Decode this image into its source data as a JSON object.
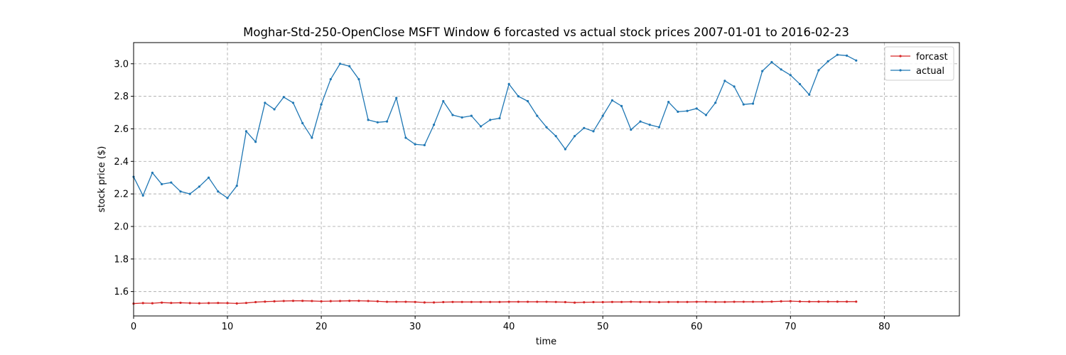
{
  "chart_data": {
    "type": "line",
    "title": "Moghar-Std-250-OpenClose MSFT Window 6 forcasted vs actual stock prices 2007-01-01 to 2016-02-23",
    "xlabel": "time",
    "ylabel": "stock price ($)",
    "xlim": [
      0,
      88
    ],
    "ylim": [
      1.45,
      3.13
    ],
    "xticks": [
      0,
      10,
      20,
      30,
      40,
      50,
      60,
      70,
      80
    ],
    "yticks": [
      1.6,
      1.8,
      2.0,
      2.2,
      2.4,
      2.6,
      2.8,
      3.0
    ],
    "ytick_labels": [
      "1.6",
      "1.8",
      "2.0",
      "2.2",
      "2.4",
      "2.6",
      "2.8",
      "3.0"
    ],
    "grid": true,
    "legend_position": "top-right",
    "series": [
      {
        "name": "forcast",
        "color": "#d62728",
        "values": [
          1.526,
          1.529,
          1.528,
          1.532,
          1.53,
          1.531,
          1.529,
          1.528,
          1.529,
          1.53,
          1.529,
          1.527,
          1.53,
          1.535,
          1.538,
          1.54,
          1.542,
          1.543,
          1.543,
          1.542,
          1.54,
          1.541,
          1.542,
          1.543,
          1.543,
          1.542,
          1.54,
          1.537,
          1.537,
          1.537,
          1.536,
          1.533,
          1.533,
          1.535,
          1.536,
          1.536,
          1.536,
          1.536,
          1.536,
          1.536,
          1.537,
          1.537,
          1.537,
          1.537,
          1.537,
          1.536,
          1.535,
          1.532,
          1.534,
          1.535,
          1.535,
          1.536,
          1.536,
          1.537,
          1.536,
          1.536,
          1.535,
          1.536,
          1.536,
          1.536,
          1.537,
          1.537,
          1.536,
          1.536,
          1.537,
          1.537,
          1.537,
          1.537,
          1.538,
          1.54,
          1.541,
          1.539,
          1.538,
          1.538,
          1.538,
          1.538,
          1.538,
          1.538
        ]
      },
      {
        "name": "actual",
        "color": "#1f77b4",
        "values": [
          2.305,
          2.19,
          2.33,
          2.26,
          2.27,
          2.215,
          2.2,
          2.245,
          2.3,
          2.215,
          2.175,
          2.25,
          2.585,
          2.52,
          2.76,
          2.72,
          2.795,
          2.76,
          2.635,
          2.545,
          2.75,
          2.905,
          3.0,
          2.985,
          2.905,
          2.655,
          2.64,
          2.645,
          2.79,
          2.545,
          2.505,
          2.5,
          2.625,
          2.77,
          2.685,
          2.67,
          2.68,
          2.615,
          2.655,
          2.665,
          2.875,
          2.8,
          2.77,
          2.68,
          2.61,
          2.555,
          2.475,
          2.555,
          2.605,
          2.585,
          2.68,
          2.775,
          2.74,
          2.595,
          2.645,
          2.625,
          2.61,
          2.765,
          2.705,
          2.71,
          2.725,
          2.685,
          2.76,
          2.895,
          2.86,
          2.75,
          2.755,
          2.955,
          3.01,
          2.965,
          2.93,
          2.875,
          2.81,
          2.96,
          3.015,
          3.055,
          3.05,
          3.02
        ]
      }
    ]
  }
}
